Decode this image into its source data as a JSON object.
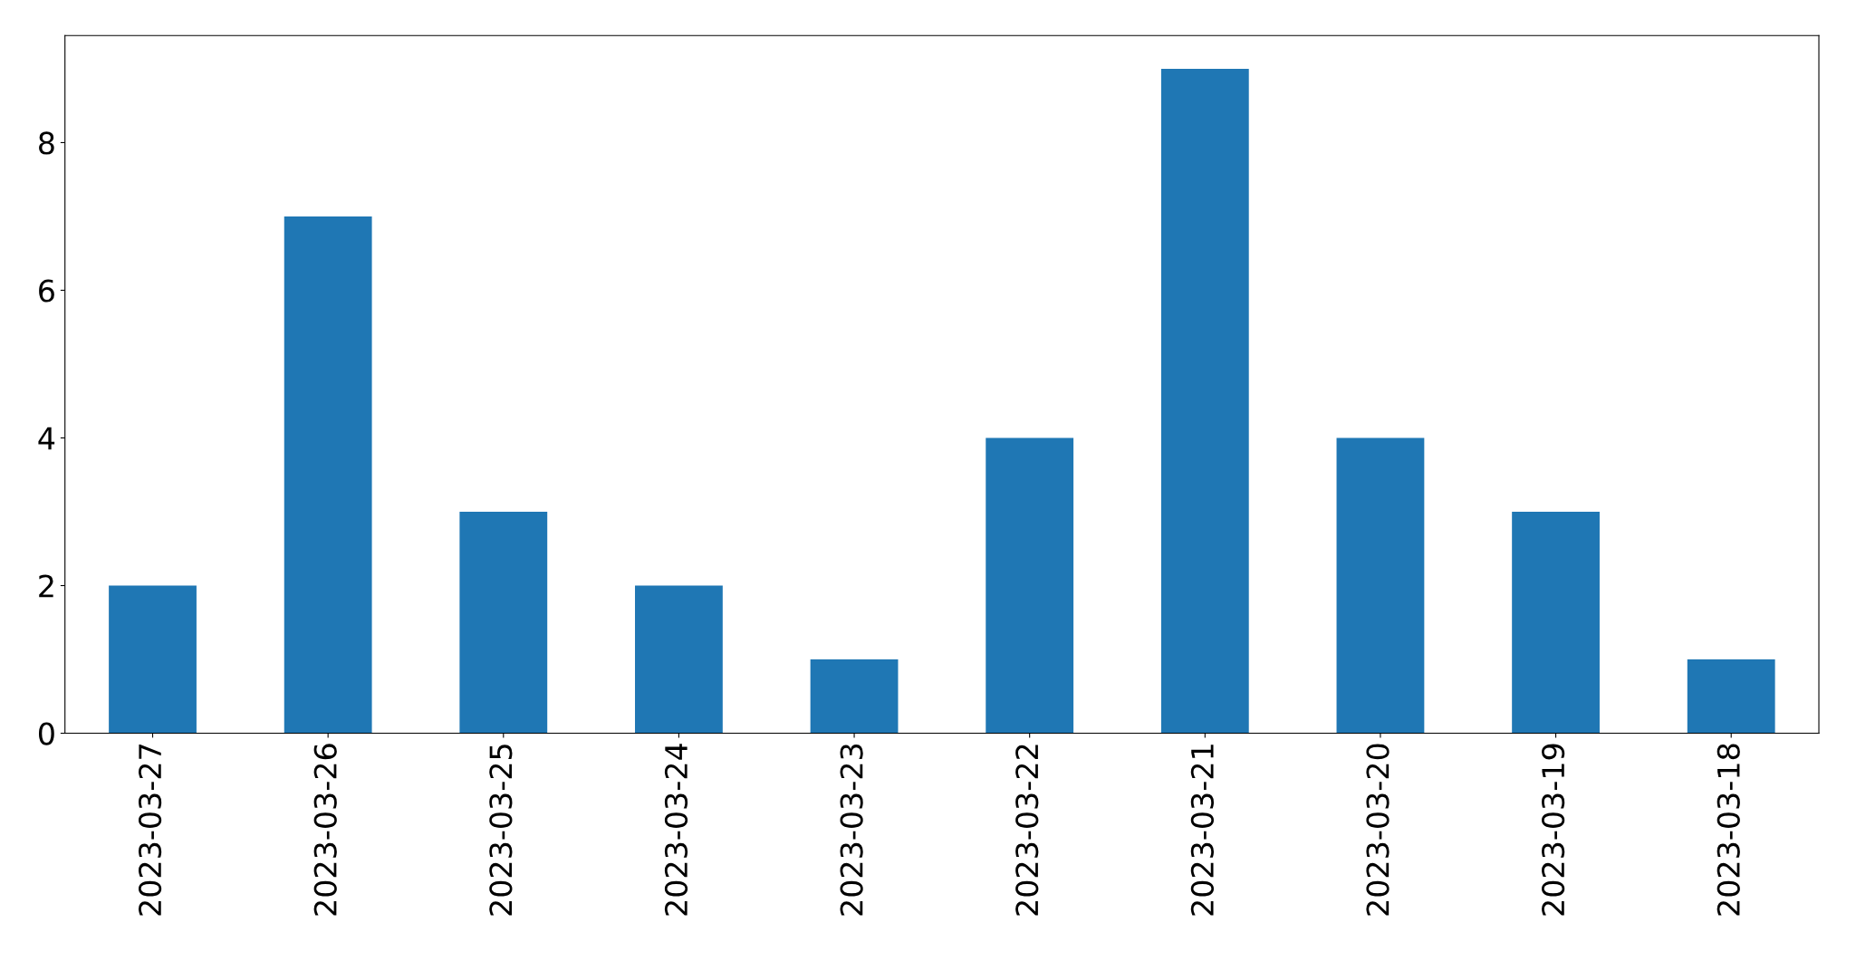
{
  "chart_data": {
    "type": "bar",
    "categories": [
      "2023-03-27",
      "2023-03-26",
      "2023-03-25",
      "2023-03-24",
      "2023-03-23",
      "2023-03-22",
      "2023-03-21",
      "2023-03-20",
      "2023-03-19",
      "2023-03-18"
    ],
    "values": [
      2,
      7,
      3,
      2,
      1,
      4,
      9,
      4,
      3,
      1
    ],
    "color": "#1f77b4",
    "ylim": [
      0,
      9.45
    ],
    "yticks": [
      0,
      2,
      4,
      6,
      8
    ],
    "grid": false
  }
}
